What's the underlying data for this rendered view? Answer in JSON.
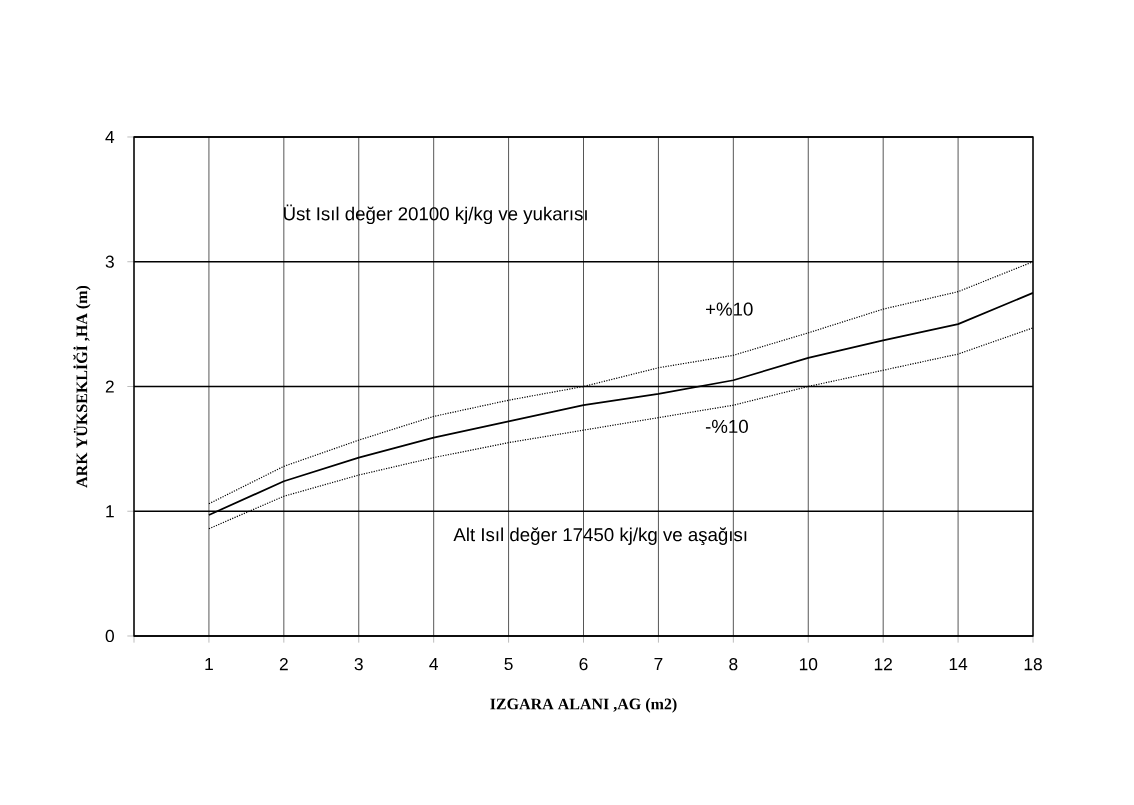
{
  "chart_data": {
    "type": "line",
    "xlabel": "IZGARA ALANI ,AG  (m2)",
    "ylabel": "ARK YÜKSEKLİĞİ ,HA  (m)",
    "categories": [
      "1",
      "2",
      "3",
      "4",
      "5",
      "6",
      "7",
      "8",
      "10",
      "12",
      "14",
      "18"
    ],
    "series": [
      {
        "color": "#000000",
        "line_style": "solid",
        "values": [
          0.97,
          1.24,
          1.43,
          1.59,
          1.72,
          1.85,
          1.94,
          2.05,
          2.23,
          2.37,
          2.5,
          2.75
        ]
      },
      {
        "name": "+%10",
        "color": "#000000",
        "line_style": "dotted",
        "values": [
          1.06,
          1.36,
          1.57,
          1.76,
          1.89,
          2.0,
          2.15,
          2.25,
          2.43,
          2.62,
          2.76,
          3.0
        ]
      },
      {
        "name": "-%10",
        "color": "#000000",
        "line_style": "dotted",
        "values": [
          0.86,
          1.12,
          1.29,
          1.43,
          1.55,
          1.65,
          1.75,
          1.85,
          2.0,
          2.13,
          2.26,
          2.47
        ]
      }
    ],
    "ylim": [
      0,
      4
    ],
    "yticks": [
      0,
      1,
      2,
      3,
      4
    ],
    "grid": true,
    "marker": "none",
    "annotations": [
      "Üst Isıl değer 20100 kj/kg ve yukarısı",
      "Alt Isıl değer 17450 kj/kg ve aşağısı"
    ]
  }
}
